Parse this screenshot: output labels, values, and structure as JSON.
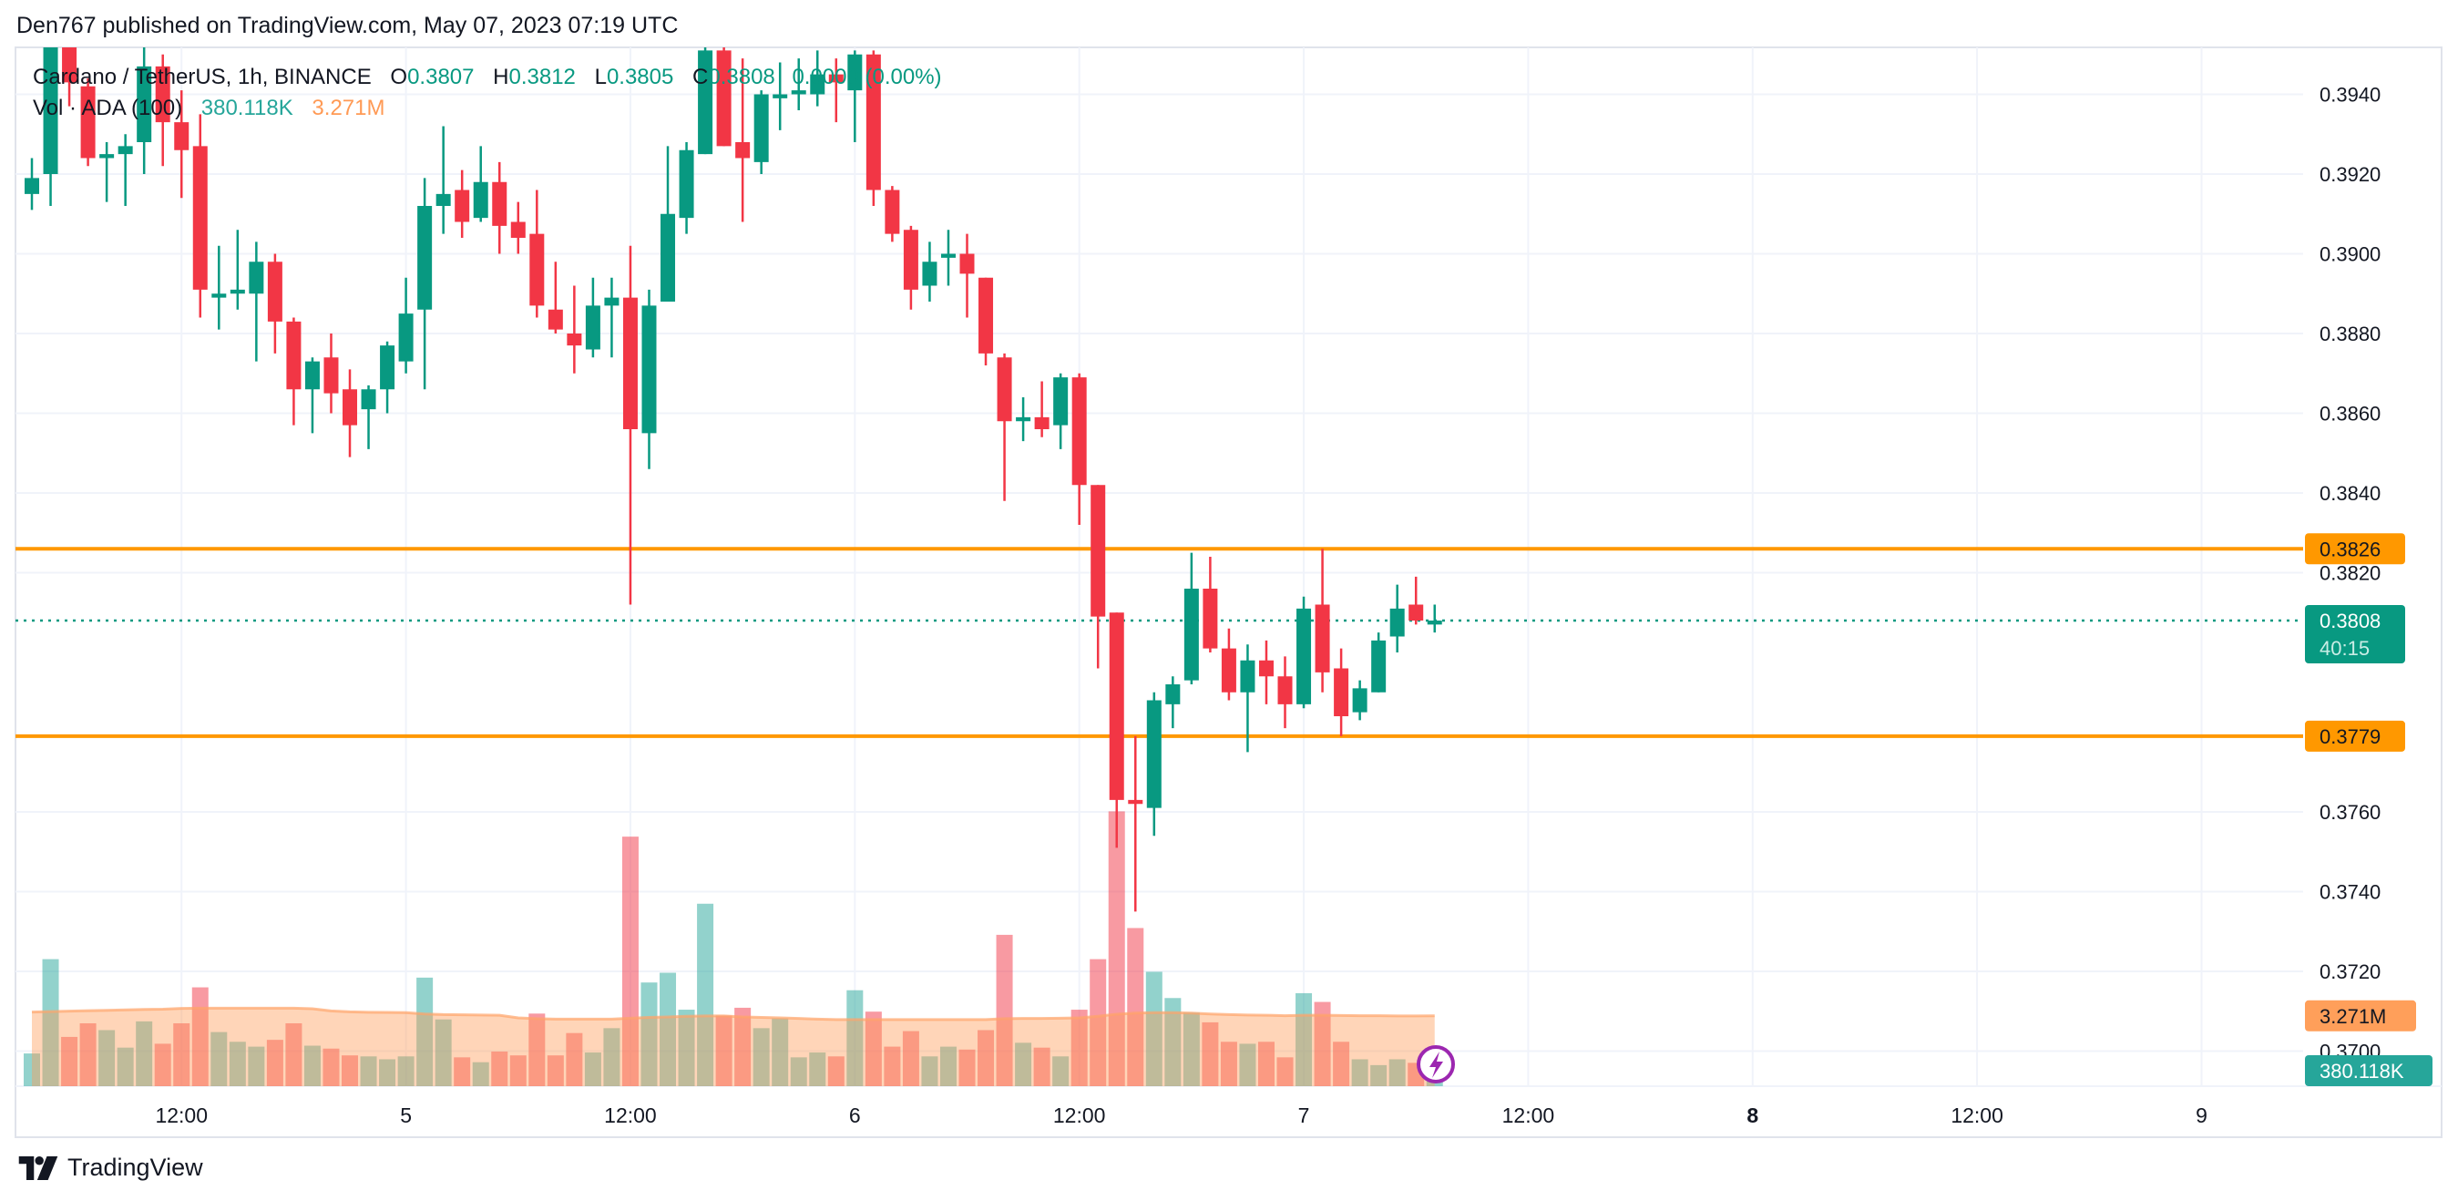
{
  "header": {
    "published": "Den767 published on TradingView.com, May 07, 2023 07:19 UTC"
  },
  "legend": {
    "symbol": "Cardano / TetherUS, 1h, BINANCE",
    "o_label": "O",
    "o": "0.3807",
    "h_label": "H",
    "h": "0.3812",
    "l_label": "L",
    "l": "0.3805",
    "c_label": "C",
    "c": "0.3808",
    "change": "0.0000 (0.00%)",
    "vol_label": "Vol · ADA (100)",
    "vol": "380.118K",
    "vol_ma": "3.271M"
  },
  "footer": {
    "brand": "TradingView"
  },
  "colors": {
    "up": "#089981",
    "down": "#F23645",
    "level": "#FF9800",
    "vol_up": "#26A69A",
    "vol_ma": "#FF9A55",
    "grid": "#F0F3FA"
  },
  "price_axis": {
    "ticks": [
      "0.3940",
      "0.3920",
      "0.3900",
      "0.3880",
      "0.3860",
      "0.3840",
      "0.3820",
      "0.3760",
      "0.3740",
      "0.3720",
      "0.3700"
    ],
    "level_labels": [
      "0.3826",
      "0.3779"
    ],
    "last_price": "0.3808",
    "countdown": "40:15",
    "vol_ma_label": "3.271M",
    "vol_label": "380.118K"
  },
  "time_axis": {
    "ticks": [
      {
        "label": "12:00",
        "bold": false
      },
      {
        "label": "5",
        "bold": false
      },
      {
        "label": "12:00",
        "bold": false
      },
      {
        "label": "6",
        "bold": false
      },
      {
        "label": "12:00",
        "bold": false
      },
      {
        "label": "7",
        "bold": false
      },
      {
        "label": "12:00",
        "bold": false
      },
      {
        "label": "8",
        "bold": true
      },
      {
        "label": "12:00",
        "bold": false
      },
      {
        "label": "9",
        "bold": false
      }
    ]
  },
  "chart_data": {
    "type": "candlestick",
    "title": "Cardano / TetherUS, 1h, BINANCE",
    "interval": "1h",
    "first_bar": "May 4 04:00",
    "ylim": [
      0.369,
      0.3953
    ],
    "grid": true,
    "horizontal_levels": [
      0.3826,
      0.3779
    ],
    "last_price": 0.3808,
    "ohlc": [
      [
        0.3915,
        0.3924,
        0.3911,
        0.3919
      ],
      [
        0.392,
        0.3953,
        0.3912,
        0.3952
      ],
      [
        0.3952,
        0.3953,
        0.3937,
        0.3943
      ],
      [
        0.3942,
        0.3944,
        0.3922,
        0.3924
      ],
      [
        0.3924,
        0.3928,
        0.3913,
        0.3925
      ],
      [
        0.3925,
        0.393,
        0.3912,
        0.3927
      ],
      [
        0.3928,
        0.3953,
        0.392,
        0.3947
      ],
      [
        0.3947,
        0.395,
        0.3922,
        0.3933
      ],
      [
        0.3933,
        0.3941,
        0.3914,
        0.3926
      ],
      [
        0.3927,
        0.3935,
        0.3884,
        0.3891
      ],
      [
        0.3889,
        0.3902,
        0.3881,
        0.389
      ],
      [
        0.389,
        0.3906,
        0.3886,
        0.3891
      ],
      [
        0.389,
        0.3903,
        0.3873,
        0.3898
      ],
      [
        0.3898,
        0.39,
        0.3875,
        0.3883
      ],
      [
        0.3883,
        0.3884,
        0.3857,
        0.3866
      ],
      [
        0.3866,
        0.3874,
        0.3855,
        0.3873
      ],
      [
        0.3874,
        0.388,
        0.386,
        0.3865
      ],
      [
        0.3866,
        0.3871,
        0.3849,
        0.3857
      ],
      [
        0.3861,
        0.3867,
        0.3851,
        0.3866
      ],
      [
        0.3866,
        0.3878,
        0.386,
        0.3877
      ],
      [
        0.3873,
        0.3894,
        0.387,
        0.3885
      ],
      [
        0.3886,
        0.3919,
        0.3866,
        0.3912
      ],
      [
        0.3912,
        0.3932,
        0.3905,
        0.3915
      ],
      [
        0.3916,
        0.3921,
        0.3904,
        0.3908
      ],
      [
        0.3909,
        0.3927,
        0.3908,
        0.3918
      ],
      [
        0.3918,
        0.3923,
        0.39,
        0.3907
      ],
      [
        0.3908,
        0.3913,
        0.39,
        0.3904
      ],
      [
        0.3905,
        0.3916,
        0.3884,
        0.3887
      ],
      [
        0.3886,
        0.3898,
        0.388,
        0.3881
      ],
      [
        0.388,
        0.3892,
        0.387,
        0.3877
      ],
      [
        0.3876,
        0.3894,
        0.3874,
        0.3887
      ],
      [
        0.3887,
        0.3894,
        0.3874,
        0.3889
      ],
      [
        0.3889,
        0.3902,
        0.3812,
        0.3856
      ],
      [
        0.3855,
        0.3891,
        0.3846,
        0.3887
      ],
      [
        0.3888,
        0.3927,
        0.3888,
        0.391
      ],
      [
        0.3909,
        0.3928,
        0.3905,
        0.3926
      ],
      [
        0.3925,
        0.3953,
        0.3925,
        0.3951
      ],
      [
        0.3951,
        0.3953,
        0.3927,
        0.3927
      ],
      [
        0.3928,
        0.3949,
        0.3908,
        0.3924
      ],
      [
        0.3923,
        0.3941,
        0.392,
        0.394
      ],
      [
        0.3939,
        0.3948,
        0.3931,
        0.394
      ],
      [
        0.394,
        0.3949,
        0.3936,
        0.3941
      ],
      [
        0.394,
        0.3951,
        0.3937,
        0.3945
      ],
      [
        0.3945,
        0.3949,
        0.3933,
        0.3943
      ],
      [
        0.3941,
        0.3951,
        0.3928,
        0.395
      ],
      [
        0.395,
        0.3951,
        0.3912,
        0.3916
      ],
      [
        0.3916,
        0.3917,
        0.3903,
        0.3905
      ],
      [
        0.3906,
        0.3907,
        0.3886,
        0.3891
      ],
      [
        0.3892,
        0.3903,
        0.3888,
        0.3898
      ],
      [
        0.3899,
        0.3906,
        0.3892,
        0.39
      ],
      [
        0.39,
        0.3905,
        0.3884,
        0.3895
      ],
      [
        0.3894,
        0.3894,
        0.3872,
        0.3875
      ],
      [
        0.3874,
        0.3875,
        0.3838,
        0.3858
      ],
      [
        0.3858,
        0.3864,
        0.3853,
        0.3859
      ],
      [
        0.3859,
        0.3868,
        0.3854,
        0.3856
      ],
      [
        0.3857,
        0.387,
        0.3851,
        0.3869
      ],
      [
        0.3869,
        0.387,
        0.3832,
        0.3842
      ],
      [
        0.3842,
        0.3842,
        0.3796,
        0.3809
      ],
      [
        0.381,
        0.381,
        0.3751,
        0.3763
      ],
      [
        0.3763,
        0.3779,
        0.3735,
        0.3762
      ],
      [
        0.3761,
        0.379,
        0.3754,
        0.3788
      ],
      [
        0.3787,
        0.3794,
        0.3781,
        0.3792
      ],
      [
        0.3793,
        0.3825,
        0.3792,
        0.3816
      ],
      [
        0.3816,
        0.3824,
        0.38,
        0.3801
      ],
      [
        0.3801,
        0.3806,
        0.3788,
        0.379
      ],
      [
        0.379,
        0.3802,
        0.3775,
        0.3798
      ],
      [
        0.3798,
        0.3803,
        0.3787,
        0.3794
      ],
      [
        0.3794,
        0.3799,
        0.3781,
        0.3787
      ],
      [
        0.3787,
        0.3814,
        0.3786,
        0.3811
      ],
      [
        0.3812,
        0.3826,
        0.379,
        0.3795
      ],
      [
        0.3796,
        0.3801,
        0.3779,
        0.3784
      ],
      [
        0.3785,
        0.3793,
        0.3783,
        0.3791
      ],
      [
        0.379,
        0.3805,
        0.379,
        0.3803
      ],
      [
        0.3804,
        0.3817,
        0.38,
        0.3811
      ],
      [
        0.3812,
        0.3819,
        0.3807,
        0.3808
      ],
      [
        0.3807,
        0.3812,
        0.3805,
        0.3808
      ]
    ],
    "volume_k": [
      1522,
      5907,
      2291,
      2924,
      2607,
      1793,
      3014,
      1974,
      2924,
      4596,
      2517,
      2065,
      1839,
      2155,
      2924,
      1884,
      1748,
      1432,
      1386,
      1251,
      1386,
      5048,
      3104,
      1341,
      1115,
      1612,
      1432,
      3376,
      1432,
      2471,
      1567,
      2698,
      11604,
      4822,
      5275,
      3557,
      8484,
      3285,
      3647,
      2698,
      3150,
      1341,
      1567,
      1386,
      4461,
      3466,
      1839,
      2562,
      1386,
      1839,
      1703,
      2607,
      7038,
      2019,
      1793,
      1386,
      3557,
      5907,
      12779,
      7354,
      5320,
      4099,
      3421,
      2969,
      2065,
      1974,
      2065,
      1341,
      4325,
      3918,
      2065,
      1251,
      980,
      1251,
      1085,
      380.118
    ],
    "volume_ma_m": [
      3.45,
      3.47,
      3.49,
      3.51,
      3.53,
      3.55,
      3.57,
      3.58,
      3.62,
      3.63,
      3.63,
      3.63,
      3.63,
      3.63,
      3.63,
      3.6,
      3.5,
      3.46,
      3.44,
      3.43,
      3.42,
      3.36,
      3.33,
      3.32,
      3.31,
      3.3,
      3.18,
      3.14,
      3.12,
      3.12,
      3.12,
      3.12,
      3.16,
      3.2,
      3.22,
      3.25,
      3.27,
      3.27,
      3.22,
      3.2,
      3.18,
      3.15,
      3.12,
      3.1,
      3.1,
      3.1,
      3.1,
      3.1,
      3.1,
      3.1,
      3.1,
      3.1,
      3.14,
      3.15,
      3.15,
      3.16,
      3.18,
      3.25,
      3.35,
      3.4,
      3.42,
      3.42,
      3.4,
      3.36,
      3.33,
      3.31,
      3.3,
      3.28,
      3.3,
      3.3,
      3.29,
      3.28,
      3.28,
      3.27,
      3.27,
      3.271
    ]
  }
}
